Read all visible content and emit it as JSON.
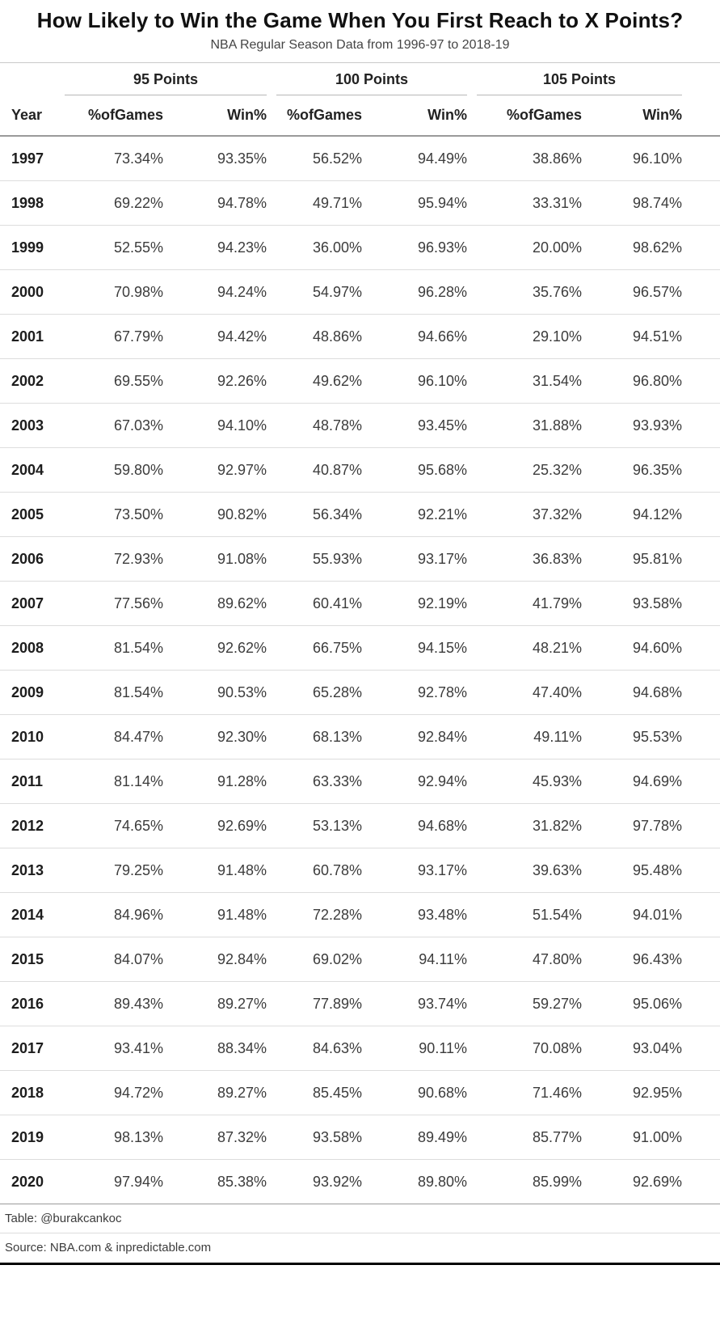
{
  "chart_data": {
    "type": "table",
    "title": "How Likely to Win the Game When You First Reach to X Points?",
    "subtitle": "NBA Regular Season Data from 1996-97 to 2018-19",
    "spanners": [
      "95 Points",
      "100 Points",
      "105 Points"
    ],
    "columns": [
      "Year",
      "%ofGames",
      "Win%",
      "%ofGames",
      "Win%",
      "%ofGames",
      "Win%"
    ],
    "rows": [
      [
        "1997",
        "73.34%",
        "93.35%",
        "56.52%",
        "94.49%",
        "38.86%",
        "96.10%"
      ],
      [
        "1998",
        "69.22%",
        "94.78%",
        "49.71%",
        "95.94%",
        "33.31%",
        "98.74%"
      ],
      [
        "1999",
        "52.55%",
        "94.23%",
        "36.00%",
        "96.93%",
        "20.00%",
        "98.62%"
      ],
      [
        "2000",
        "70.98%",
        "94.24%",
        "54.97%",
        "96.28%",
        "35.76%",
        "96.57%"
      ],
      [
        "2001",
        "67.79%",
        "94.42%",
        "48.86%",
        "94.66%",
        "29.10%",
        "94.51%"
      ],
      [
        "2002",
        "69.55%",
        "92.26%",
        "49.62%",
        "96.10%",
        "31.54%",
        "96.80%"
      ],
      [
        "2003",
        "67.03%",
        "94.10%",
        "48.78%",
        "93.45%",
        "31.88%",
        "93.93%"
      ],
      [
        "2004",
        "59.80%",
        "92.97%",
        "40.87%",
        "95.68%",
        "25.32%",
        "96.35%"
      ],
      [
        "2005",
        "73.50%",
        "90.82%",
        "56.34%",
        "92.21%",
        "37.32%",
        "94.12%"
      ],
      [
        "2006",
        "72.93%",
        "91.08%",
        "55.93%",
        "93.17%",
        "36.83%",
        "95.81%"
      ],
      [
        "2007",
        "77.56%",
        "89.62%",
        "60.41%",
        "92.19%",
        "41.79%",
        "93.58%"
      ],
      [
        "2008",
        "81.54%",
        "92.62%",
        "66.75%",
        "94.15%",
        "48.21%",
        "94.60%"
      ],
      [
        "2009",
        "81.54%",
        "90.53%",
        "65.28%",
        "92.78%",
        "47.40%",
        "94.68%"
      ],
      [
        "2010",
        "84.47%",
        "92.30%",
        "68.13%",
        "92.84%",
        "49.11%",
        "95.53%"
      ],
      [
        "2011",
        "81.14%",
        "91.28%",
        "63.33%",
        "92.94%",
        "45.93%",
        "94.69%"
      ],
      [
        "2012",
        "74.65%",
        "92.69%",
        "53.13%",
        "94.68%",
        "31.82%",
        "97.78%"
      ],
      [
        "2013",
        "79.25%",
        "91.48%",
        "60.78%",
        "93.17%",
        "39.63%",
        "95.48%"
      ],
      [
        "2014",
        "84.96%",
        "91.48%",
        "72.28%",
        "93.48%",
        "51.54%",
        "94.01%"
      ],
      [
        "2015",
        "84.07%",
        "92.84%",
        "69.02%",
        "94.11%",
        "47.80%",
        "96.43%"
      ],
      [
        "2016",
        "89.43%",
        "89.27%",
        "77.89%",
        "93.74%",
        "59.27%",
        "95.06%"
      ],
      [
        "2017",
        "93.41%",
        "88.34%",
        "84.63%",
        "90.11%",
        "70.08%",
        "93.04%"
      ],
      [
        "2018",
        "94.72%",
        "89.27%",
        "85.45%",
        "90.68%",
        "71.46%",
        "92.95%"
      ],
      [
        "2019",
        "98.13%",
        "87.32%",
        "93.58%",
        "89.49%",
        "85.77%",
        "91.00%"
      ],
      [
        "2020",
        "97.94%",
        "85.38%",
        "93.92%",
        "89.80%",
        "85.99%",
        "92.69%"
      ]
    ],
    "footnotes": [
      "Table: @burakcankoc",
      "Source: NBA.com & inpredictable.com"
    ],
    "text_color": "#3c3c3c",
    "rule_color": "#dddddd",
    "heavy_rule_color": "#000000"
  }
}
